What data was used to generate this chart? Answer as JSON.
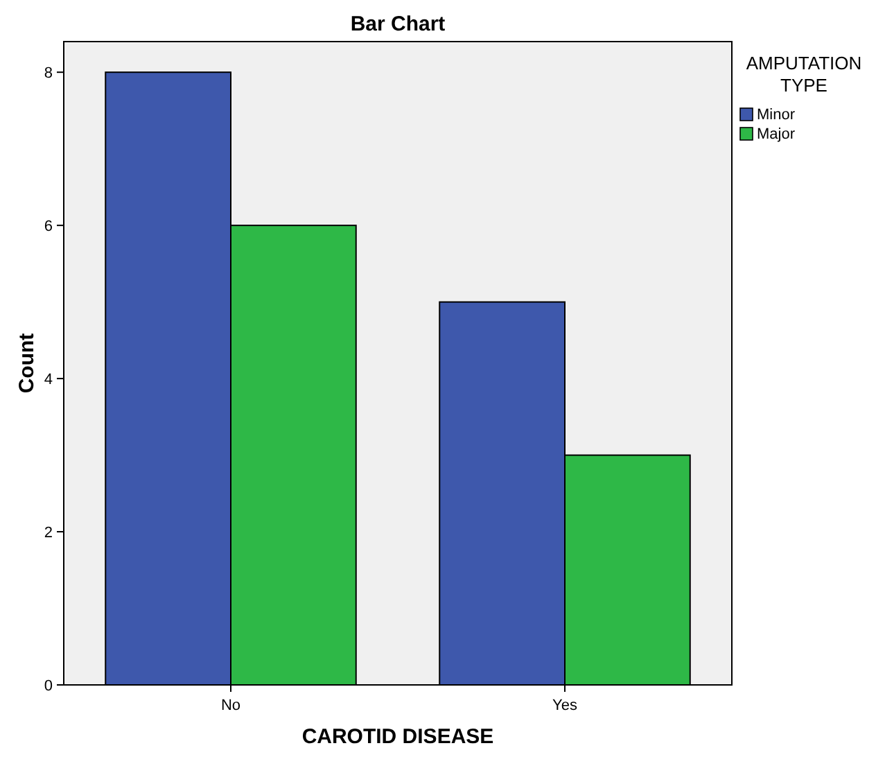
{
  "chart_data": {
    "type": "bar",
    "title": "Bar Chart",
    "xlabel": "CAROTID DISEASE",
    "ylabel": "Count",
    "legend_title": "AMPUTATION TYPE",
    "categories": [
      "No",
      "Yes"
    ],
    "series": [
      {
        "name": "Minor",
        "color": "#3e58ac",
        "values": [
          8,
          5
        ]
      },
      {
        "name": "Major",
        "color": "#2eb847",
        "values": [
          6,
          3
        ]
      }
    ],
    "ylim": [
      0,
      8.4
    ],
    "yticks": [
      0,
      2,
      4,
      6,
      8
    ],
    "grid": false,
    "legend": "top right"
  }
}
